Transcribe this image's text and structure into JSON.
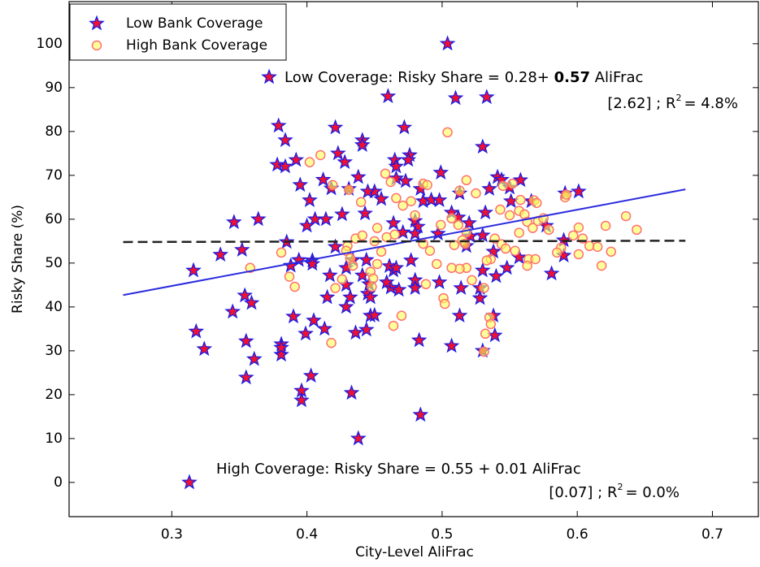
{
  "chart_data": {
    "type": "scatter",
    "xlabel": "City-Level AliFrac",
    "ylabel": "Risky Share (%)",
    "xlim": [
      0.224,
      0.734
    ],
    "ylim": [
      -7.8,
      109.6
    ],
    "xticks": [
      0.3,
      0.4,
      0.5,
      0.6,
      0.7
    ],
    "yticks": [
      0,
      10,
      20,
      30,
      40,
      50,
      60,
      70,
      80,
      90,
      100
    ],
    "legend": "upper left",
    "series": [
      {
        "name": "Low Bank Coverage",
        "marker": "star",
        "color": "#ee1133",
        "edgecolor": "#1a1ae6",
        "x": [
          0.313,
          0.438,
          0.484,
          0.433,
          0.396,
          0.396,
          0.403,
          0.355,
          0.318,
          0.324,
          0.355,
          0.361,
          0.381,
          0.381,
          0.381,
          0.399,
          0.405,
          0.413,
          0.39,
          0.316,
          0.336,
          0.352,
          0.346,
          0.364,
          0.345,
          0.354,
          0.359,
          0.385,
          0.394,
          0.388,
          0.404,
          0.404,
          0.406,
          0.4,
          0.414,
          0.417,
          0.415,
          0.426,
          0.421,
          0.429,
          0.432,
          0.429,
          0.429,
          0.436,
          0.444,
          0.447,
          0.45,
          0.434,
          0.441,
          0.444,
          0.446,
          0.445,
          0.447,
          0.379,
          0.384,
          0.378,
          0.384,
          0.392,
          0.395,
          0.402,
          0.412,
          0.418,
          0.421,
          0.423,
          0.428,
          0.431,
          0.441,
          0.441,
          0.438,
          0.45,
          0.455,
          0.443,
          0.46,
          0.465,
          0.466,
          0.466,
          0.472,
          0.476,
          0.475,
          0.473,
          0.484,
          0.486,
          0.492,
          0.499,
          0.498,
          0.504,
          0.51,
          0.533,
          0.53,
          0.513,
          0.535,
          0.541,
          0.544,
          0.55,
          0.551,
          0.532,
          0.52,
          0.507,
          0.512,
          0.464,
          0.48,
          0.482,
          0.48,
          0.471,
          0.477,
          0.464,
          0.461,
          0.466,
          0.48,
          0.48,
          0.462,
          0.459,
          0.468,
          0.483,
          0.498,
          0.507,
          0.513,
          0.514,
          0.528,
          0.528,
          0.538,
          0.539,
          0.53,
          0.53,
          0.518,
          0.521,
          0.53,
          0.538,
          0.54,
          0.548,
          0.557,
          0.577,
          0.581,
          0.59,
          0.59,
          0.601,
          0.591,
          0.566,
          0.558,
          0.372,
          0.445,
          0.497
        ],
        "y": [
          0,
          10,
          15.4,
          20.4,
          20.9,
          18.7,
          24.3,
          23.9,
          34.4,
          30.4,
          32.2,
          28.1,
          31.5,
          29.1,
          30.7,
          33.9,
          36.9,
          35,
          37.8,
          48.3,
          51.9,
          53,
          59.3,
          60,
          38.9,
          42.6,
          40.9,
          54.8,
          50.7,
          49.4,
          50.6,
          49.8,
          60,
          58.5,
          60,
          47.2,
          42.2,
          61.1,
          53.7,
          45,
          42.2,
          40,
          48.9,
          34.1,
          34.8,
          38,
          38.1,
          50.7,
          47.2,
          50.7,
          45.2,
          43,
          42.2,
          81.3,
          78,
          72.4,
          72,
          73.5,
          67.8,
          64.3,
          69,
          67,
          80.9,
          75,
          73,
          66.9,
          78,
          76.9,
          69.6,
          66.3,
          64.6,
          61.3,
          88,
          73.5,
          72,
          69.3,
          80.9,
          74.6,
          73.5,
          68.7,
          66.9,
          64.1,
          64.4,
          70.6,
          64.3,
          100,
          87.6,
          87.8,
          76.5,
          65.9,
          66.9,
          69.6,
          69,
          67.2,
          64.1,
          61.5,
          59.1,
          61.5,
          60.4,
          59.1,
          59.6,
          58.3,
          56.7,
          57,
          50.6,
          48.3,
          49.3,
          48.9,
          46.1,
          44.3,
          44.4,
          45.6,
          43.9,
          32.4,
          45.6,
          31.1,
          38,
          44.3,
          44.3,
          42,
          38,
          33.5,
          30,
          48.3,
          53.9,
          56.1,
          56.3,
          52.6,
          47,
          48.9,
          51.3,
          58.5,
          47.6,
          51.7,
          55.2,
          66.3,
          65.9,
          64.1,
          68.9,
          92.4,
          66.3,
          56.7
        ]
      },
      {
        "name": "High Bank Coverage",
        "marker": "circle",
        "color": "#ffff55",
        "edgecolor": "#ff7070",
        "x": [
          0.504,
          0.41,
          0.402,
          0.419,
          0.431,
          0.44,
          0.458,
          0.462,
          0.466,
          0.471,
          0.477,
          0.486,
          0.489,
          0.513,
          0.518,
          0.525,
          0.545,
          0.552,
          0.558,
          0.568,
          0.57,
          0.591,
          0.592,
          0.543,
          0.55,
          0.557,
          0.561,
          0.563,
          0.567,
          0.571,
          0.575,
          0.579,
          0.557,
          0.539,
          0.544,
          0.547,
          0.554,
          0.564,
          0.563,
          0.569,
          0.588,
          0.597,
          0.601,
          0.604,
          0.609,
          0.615,
          0.621,
          0.625,
          0.636,
          0.644,
          0.618,
          0.601,
          0.585,
          0.536,
          0.533,
          0.518,
          0.513,
          0.507,
          0.501,
          0.502,
          0.496,
          0.486,
          0.491,
          0.499,
          0.507,
          0.512,
          0.518,
          0.515,
          0.509,
          0.517,
          0.488,
          0.47,
          0.464,
          0.452,
          0.455,
          0.459,
          0.465,
          0.45,
          0.452,
          0.436,
          0.441,
          0.43,
          0.429,
          0.432,
          0.434,
          0.447,
          0.449,
          0.448,
          0.426,
          0.421,
          0.418,
          0.391,
          0.387,
          0.381,
          0.358,
          0.535,
          0.536,
          0.532,
          0.531,
          0.48,
          0.531,
          0.522
        ],
        "y": [
          79.8,
          74.6,
          73,
          67.8,
          66.7,
          63.9,
          70.4,
          68.5,
          64.8,
          63.1,
          64.1,
          68.1,
          67.8,
          66.5,
          68.9,
          65.9,
          67.6,
          68.1,
          64.4,
          64.3,
          63.7,
          65,
          65.6,
          62.2,
          60.9,
          61.9,
          61.1,
          59.4,
          58,
          59.6,
          60.2,
          57.6,
          56.9,
          55.6,
          54.3,
          53.3,
          52.8,
          50.9,
          49.4,
          50.9,
          53.5,
          56.3,
          58.1,
          55.6,
          53.9,
          53.7,
          58.5,
          52.6,
          60.7,
          57.6,
          49.4,
          52,
          52.4,
          50.9,
          50.6,
          48.9,
          48.7,
          48.9,
          42,
          40.7,
          49.8,
          54.4,
          52.8,
          58.7,
          60.2,
          58.7,
          57,
          55.2,
          54.1,
          54.4,
          45.2,
          38,
          35.7,
          49.8,
          52.6,
          55.9,
          56.5,
          55,
          58,
          55.6,
          56.3,
          53.9,
          52.8,
          51.1,
          49.4,
          48,
          46.5,
          44.6,
          46.3,
          44.3,
          31.8,
          44.6,
          46.9,
          52.4,
          48.9,
          37.6,
          36.1,
          33.9,
          29.8,
          60.9,
          44.3,
          46.1
        ]
      }
    ],
    "fit_lines": [
      {
        "x": [
          0.264,
          0.68
        ],
        "y": [
          42.7,
          66.8
        ],
        "color": "#2b2be0",
        "style": "solid"
      },
      {
        "x": [
          0.264,
          0.68
        ],
        "y": [
          54.8,
          55.1
        ],
        "color": "#222222",
        "style": "dashed"
      }
    ],
    "annotations": [
      {
        "parts": [
          "Low Coverage: Risky Share = 0.28+ ",
          "0.57",
          " AliFrac"
        ]
      },
      {
        "parts": [
          "[2.62] ; R",
          "2",
          "= 4.8%"
        ]
      },
      {
        "parts": [
          "High Coverage: Risky Share = 0.55 + 0.01 AliFrac"
        ]
      },
      {
        "parts": [
          "[0.07] ; R",
          "2",
          "= 0.0%"
        ]
      }
    ]
  }
}
